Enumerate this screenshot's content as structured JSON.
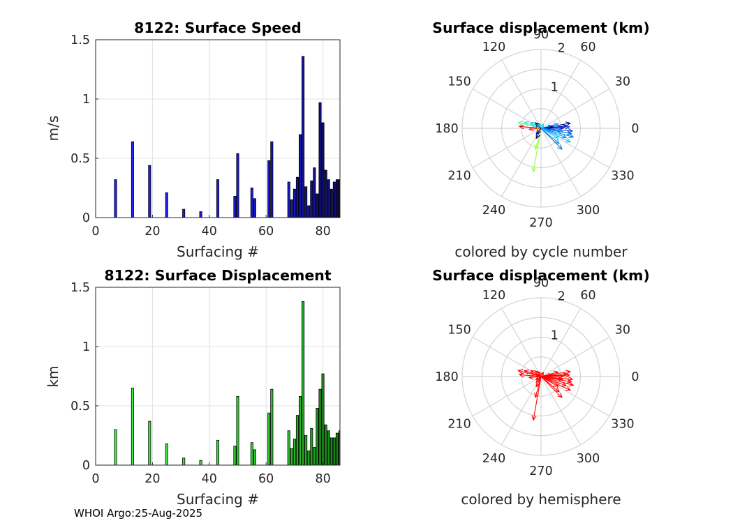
{
  "figure": {
    "footer": "WHOI Argo:25-Aug-2025"
  },
  "chart_data": [
    {
      "id": "speed",
      "type": "bar",
      "title": "8122: Surface Speed",
      "xlabel": "Surfacing #",
      "ylabel": "m/s",
      "xlim": [
        0,
        86
      ],
      "ylim": [
        0,
        1.5
      ],
      "xticks": [
        "0",
        "20",
        "40",
        "60",
        "80"
      ],
      "xtick_values": [
        0,
        20,
        40,
        60,
        80
      ],
      "yticks": [
        "0",
        "0.5",
        "1",
        "1.5"
      ],
      "ytick_values": [
        0,
        0.5,
        1,
        1.5
      ],
      "grid": true,
      "color_start": "#2020ff",
      "color_end": "#0a0a60",
      "x": [
        7,
        13,
        19,
        25,
        31,
        37,
        43,
        49,
        50,
        55,
        56,
        61,
        62,
        68,
        69,
        70,
        71,
        72,
        73,
        74,
        75,
        76,
        77,
        78,
        79,
        80,
        81,
        82,
        83,
        84,
        85,
        86
      ],
      "values": [
        0.32,
        0.64,
        0.44,
        0.21,
        0.07,
        0.05,
        0.32,
        0.18,
        0.54,
        0.25,
        0.16,
        0.48,
        0.64,
        0.3,
        0.15,
        0.24,
        0.34,
        0.7,
        1.36,
        0.26,
        0.1,
        0.31,
        0.42,
        0.2,
        0.97,
        0.8,
        0.4,
        0.32,
        0.24,
        0.3,
        0.32,
        0.32
      ]
    },
    {
      "id": "displacement",
      "type": "bar",
      "title": "8122: Surface Displacement",
      "xlabel": "Surfacing #",
      "ylabel": "km",
      "xlim": [
        0,
        86
      ],
      "ylim": [
        0,
        1.5
      ],
      "xticks": [
        "0",
        "20",
        "40",
        "60",
        "80"
      ],
      "xtick_values": [
        0,
        20,
        40,
        60,
        80
      ],
      "yticks": [
        "0",
        "0.5",
        "1",
        "1.5"
      ],
      "ytick_values": [
        0,
        0.5,
        1,
        1.5
      ],
      "grid": true,
      "color_start": "#40f040",
      "color_end": "#108010",
      "x": [
        7,
        13,
        19,
        25,
        31,
        37,
        43,
        49,
        50,
        55,
        56,
        61,
        62,
        68,
        69,
        70,
        71,
        72,
        73,
        74,
        75,
        76,
        77,
        78,
        79,
        80,
        81,
        82,
        83,
        84,
        85,
        86
      ],
      "values": [
        0.3,
        0.65,
        0.37,
        0.18,
        0.06,
        0.04,
        0.21,
        0.16,
        0.58,
        0.19,
        0.13,
        0.44,
        0.64,
        0.29,
        0.14,
        0.22,
        0.42,
        0.58,
        1.38,
        0.25,
        0.12,
        0.31,
        0.15,
        0.48,
        0.64,
        0.77,
        0.34,
        0.29,
        0.23,
        0.23,
        0.27,
        0.29
      ]
    },
    {
      "id": "polar1",
      "type": "scatter",
      "subtype": "polar-compass",
      "title": "Surface displacement (km)",
      "caption": "colored by cycle number",
      "rlim": [
        0,
        2
      ],
      "rticks": [
        "1",
        "2"
      ],
      "rtick_values": [
        1,
        2
      ],
      "angle_ticks": [
        "0",
        "30",
        "60",
        "90",
        "120",
        "150",
        "180",
        "210",
        "240",
        "270",
        "300",
        "330"
      ],
      "angle_values": [
        0,
        30,
        60,
        90,
        120,
        150,
        180,
        210,
        240,
        270,
        300,
        330
      ],
      "arrows": [
        {
          "angle": 10,
          "r": 0.75,
          "color": "#000080"
        },
        {
          "angle": 5,
          "r": 0.65,
          "color": "#0010a0"
        },
        {
          "angle": 0,
          "r": 0.55,
          "color": "#0000c0"
        },
        {
          "angle": 3,
          "r": 0.72,
          "color": "#1840d0"
        },
        {
          "angle": -5,
          "r": 0.8,
          "color": "#0050e0"
        },
        {
          "angle": -10,
          "r": 0.78,
          "color": "#0060d8"
        },
        {
          "angle": -15,
          "r": 0.85,
          "color": "#0080e0"
        },
        {
          "angle": -20,
          "r": 0.68,
          "color": "#0090f0"
        },
        {
          "angle": -8,
          "r": 0.55,
          "color": "#00a8ff"
        },
        {
          "angle": -25,
          "r": 0.82,
          "color": "#00c0ff"
        },
        {
          "angle": -40,
          "r": 0.6,
          "color": "#2090e0"
        },
        {
          "angle": -45,
          "r": 0.75,
          "color": "#1070d0"
        },
        {
          "angle": 15,
          "r": 0.45,
          "color": "#00b0ff"
        },
        {
          "angle": -30,
          "r": 0.5,
          "color": "#20d0ff"
        },
        {
          "angle": 8,
          "r": 0.3,
          "color": "#0000a0"
        },
        {
          "angle": 165,
          "r": 0.6,
          "color": "#60ffa0"
        },
        {
          "angle": 160,
          "r": 0.45,
          "color": "#40e0c0"
        },
        {
          "angle": 150,
          "r": 0.3,
          "color": "#20c0e0"
        },
        {
          "angle": 175,
          "r": 0.55,
          "color": "#e00000"
        },
        {
          "angle": 185,
          "r": 0.3,
          "color": "#ff2020"
        },
        {
          "angle": 260,
          "r": 1.12,
          "color": "#90ff40"
        },
        {
          "angle": 255,
          "r": 0.55,
          "color": "#a0ff30"
        },
        {
          "angle": 245,
          "r": 0.28,
          "color": "#000060"
        },
        {
          "angle": 210,
          "r": 0.15,
          "color": "#ffff30"
        },
        {
          "angle": 120,
          "r": 0.15,
          "color": "#30ffc0"
        },
        {
          "angle": 135,
          "r": 0.2,
          "color": "#000090"
        },
        {
          "angle": 230,
          "r": 0.18,
          "color": "#0000c0"
        },
        {
          "angle": 60,
          "r": 0.12,
          "color": "#00d0ff"
        }
      ]
    },
    {
      "id": "polar2",
      "type": "scatter",
      "subtype": "polar-compass",
      "title": "Surface displacement (km)",
      "caption": "colored by hemisphere",
      "rlim": [
        0,
        2
      ],
      "rticks": [
        "1",
        "2"
      ],
      "rtick_values": [
        1,
        2
      ],
      "angle_ticks": [
        "0",
        "30",
        "60",
        "90",
        "120",
        "150",
        "180",
        "210",
        "240",
        "270",
        "300",
        "330"
      ],
      "angle_values": [
        0,
        30,
        60,
        90,
        120,
        150,
        180,
        210,
        240,
        270,
        300,
        330
      ],
      "arrow_color": "#ff0000",
      "arrows": [
        {
          "angle": 10,
          "r": 0.75
        },
        {
          "angle": 5,
          "r": 0.65
        },
        {
          "angle": 0,
          "r": 0.55
        },
        {
          "angle": 3,
          "r": 0.72
        },
        {
          "angle": -5,
          "r": 0.8
        },
        {
          "angle": -10,
          "r": 0.78
        },
        {
          "angle": -15,
          "r": 0.85
        },
        {
          "angle": -20,
          "r": 0.68
        },
        {
          "angle": -8,
          "r": 0.55
        },
        {
          "angle": -25,
          "r": 0.82
        },
        {
          "angle": -40,
          "r": 0.6
        },
        {
          "angle": -45,
          "r": 0.75
        },
        {
          "angle": 15,
          "r": 0.45
        },
        {
          "angle": -30,
          "r": 0.5
        },
        {
          "angle": 8,
          "r": 0.3
        },
        {
          "angle": 165,
          "r": 0.6
        },
        {
          "angle": 160,
          "r": 0.45
        },
        {
          "angle": 150,
          "r": 0.3
        },
        {
          "angle": 175,
          "r": 0.55
        },
        {
          "angle": 185,
          "r": 0.3
        },
        {
          "angle": 260,
          "r": 1.12
        },
        {
          "angle": 255,
          "r": 0.55
        },
        {
          "angle": 245,
          "r": 0.28
        },
        {
          "angle": 210,
          "r": 0.15
        },
        {
          "angle": 120,
          "r": 0.15
        },
        {
          "angle": 135,
          "r": 0.2
        },
        {
          "angle": 230,
          "r": 0.18
        },
        {
          "angle": 60,
          "r": 0.12
        }
      ]
    }
  ]
}
